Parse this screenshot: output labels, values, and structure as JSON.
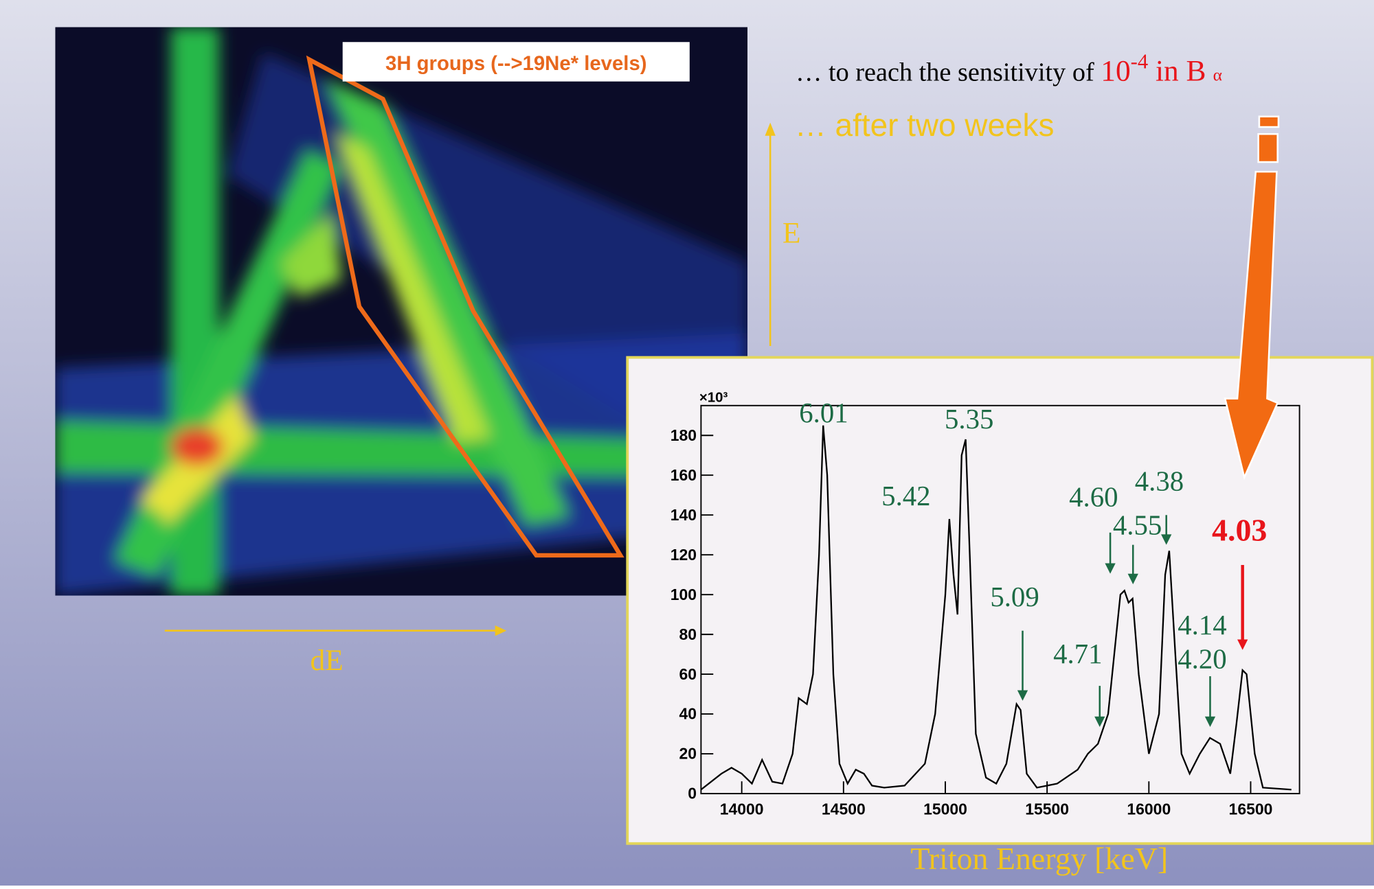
{
  "slide": {
    "heatmap_label": "3H groups (-->19Ne* levels)",
    "sentence_start": "… to reach the sensitivity of ",
    "sentence_base": "10",
    "sentence_exponent": "-4",
    "sentence_mid": " in B",
    "sentence_subscript": "α",
    "subtitle": "… after two weeks",
    "e_axis_label": "E",
    "de_axis_label": "dE"
  },
  "chart_data": {
    "type": "line",
    "x_label": "Triton Energy [keV]",
    "y_multiplier": "×10³",
    "color": "#000000",
    "x": [
      13800,
      13900,
      13950,
      14000,
      14050,
      14100,
      14150,
      14200,
      14250,
      14280,
      14320,
      14350,
      14380,
      14400,
      14420,
      14450,
      14480,
      14520,
      14560,
      14600,
      14640,
      14700,
      14800,
      14900,
      14950,
      15000,
      15020,
      15040,
      15060,
      15080,
      15100,
      15120,
      15150,
      15200,
      15250,
      15300,
      15350,
      15370,
      15400,
      15450,
      15550,
      15650,
      15700,
      15750,
      15800,
      15840,
      15860,
      15880,
      15900,
      15920,
      15950,
      16000,
      16050,
      16080,
      16100,
      16130,
      16160,
      16200,
      16250,
      16300,
      16350,
      16400,
      16430,
      16460,
      16480,
      16520,
      16560,
      16700
    ],
    "values": [
      2,
      10,
      13,
      10,
      5,
      17,
      6,
      5,
      20,
      48,
      45,
      60,
      120,
      185,
      160,
      60,
      15,
      5,
      12,
      10,
      4,
      3,
      4,
      15,
      40,
      100,
      138,
      110,
      90,
      170,
      178,
      120,
      30,
      8,
      5,
      15,
      45,
      42,
      10,
      3,
      5,
      12,
      20,
      25,
      40,
      80,
      100,
      102,
      96,
      98,
      60,
      20,
      40,
      110,
      122,
      70,
      20,
      10,
      20,
      28,
      25,
      10,
      35,
      62,
      60,
      20,
      3,
      2
    ],
    "xlim": [
      13800,
      16740
    ],
    "ylim": [
      0,
      195
    ],
    "xticks": [
      14000,
      14500,
      15000,
      15500,
      16000,
      16500
    ],
    "yticks": [
      0,
      20,
      40,
      60,
      80,
      100,
      120,
      140,
      160,
      180
    ],
    "annotations": [
      "6.01",
      "5.35",
      "5.42",
      "5.09",
      "4.60",
      "4.38",
      "4.55",
      "4.03",
      "4.71",
      "4.14",
      "4.20"
    ]
  }
}
